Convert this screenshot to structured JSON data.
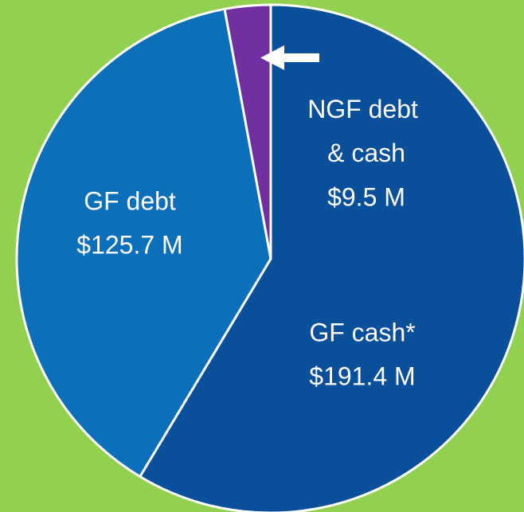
{
  "chart_data": {
    "type": "pie",
    "categories": [
      "GF cash*",
      "GF debt",
      "NGF debt & cash"
    ],
    "values": [
      191.4,
      125.7,
      9.5
    ],
    "value_labels": [
      "$191.4 M",
      "$125.7 M",
      "$9.5 M"
    ],
    "colors": [
      "#0a4f9a",
      "#0b6fba",
      "#7030a0"
    ],
    "start_angle": 0,
    "direction": "clockwise"
  }
}
